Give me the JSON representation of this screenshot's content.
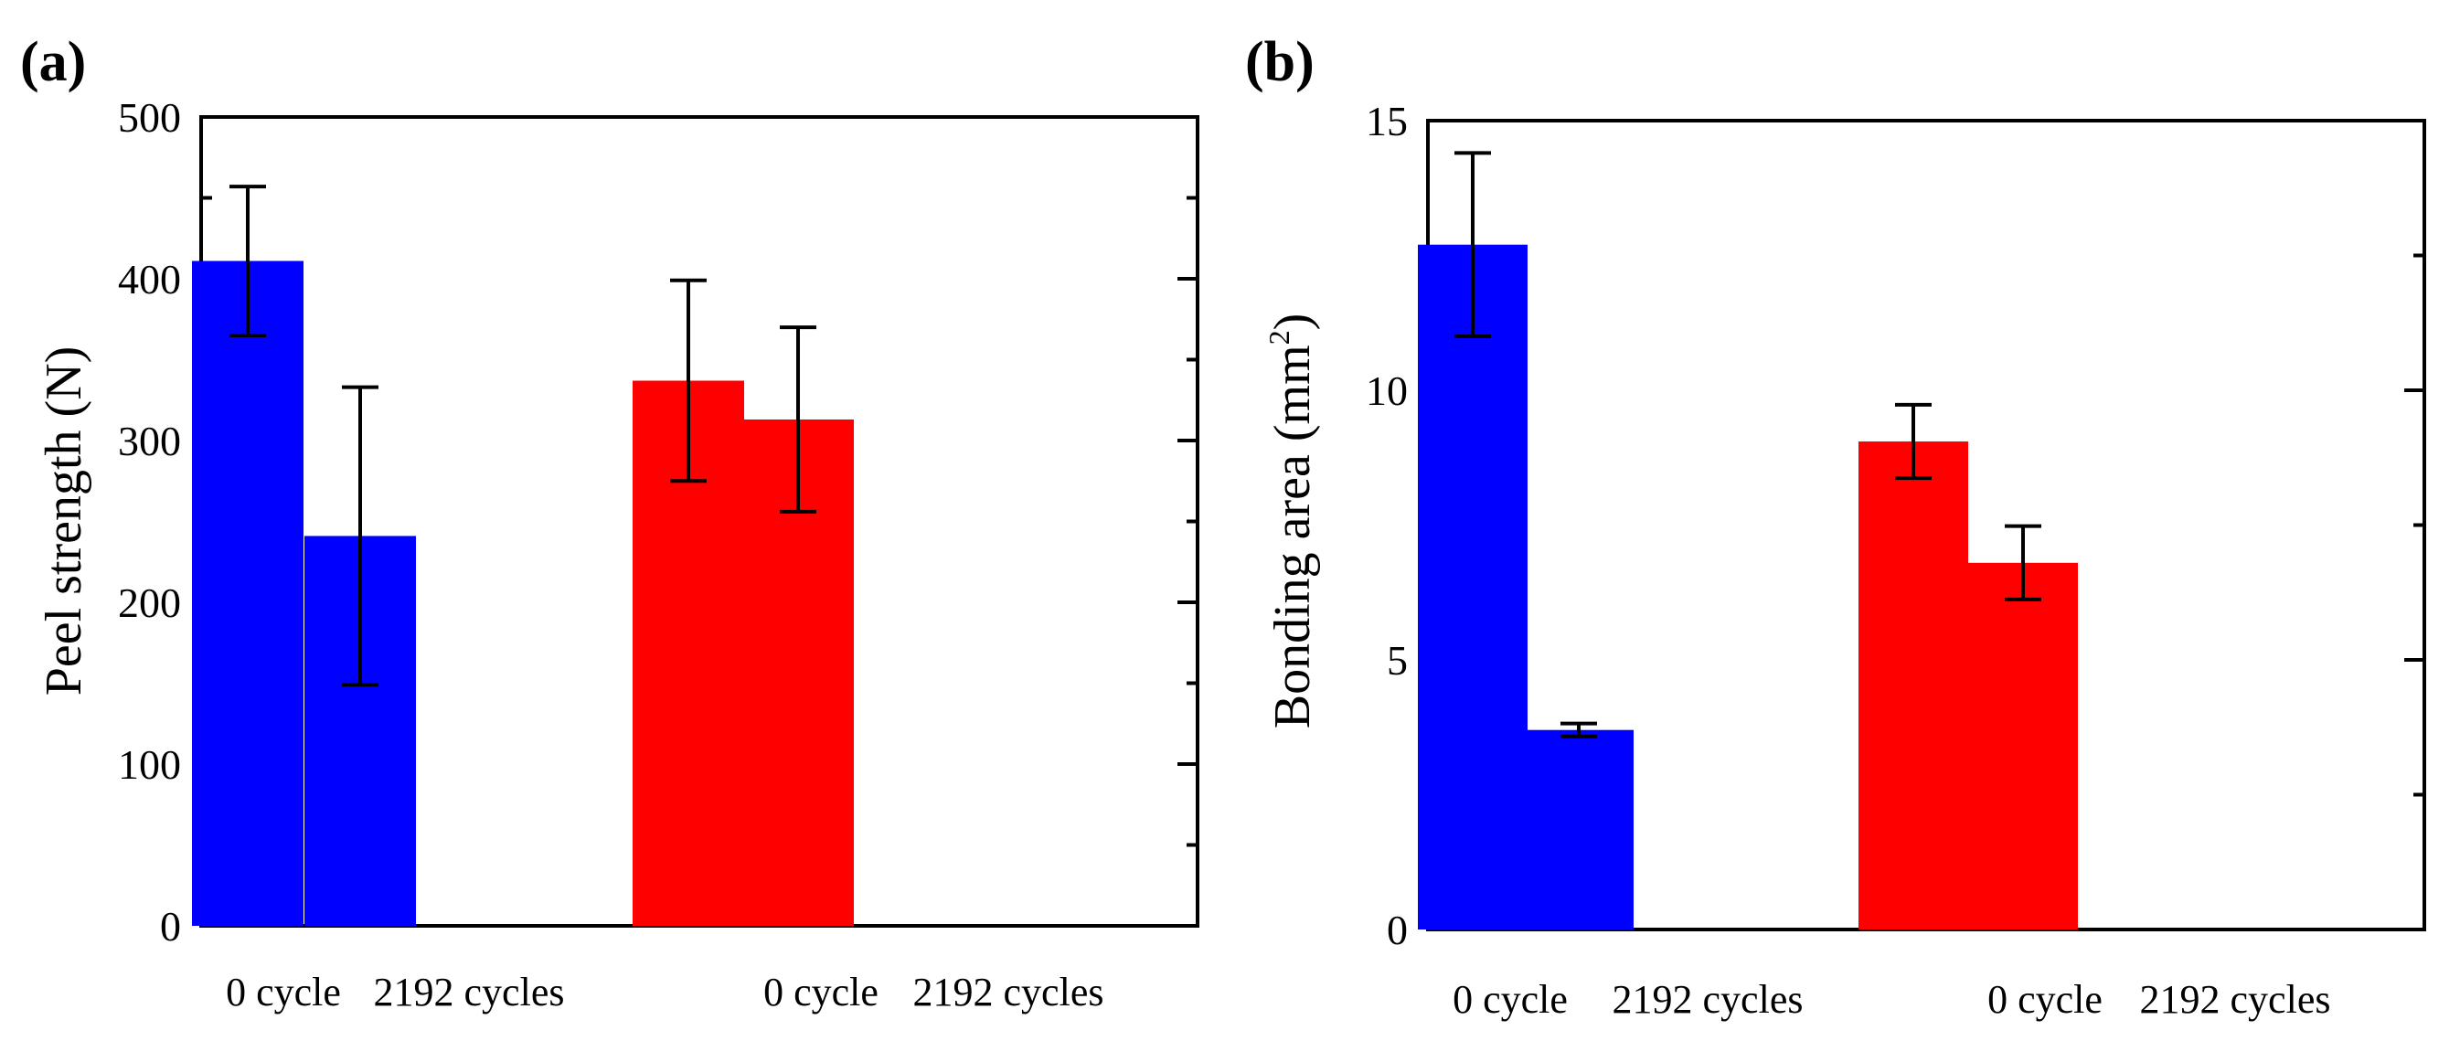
{
  "chart_data": [
    {
      "type": "bar",
      "panel_label": "(a)",
      "categories": [
        "0 cycle",
        "2192 cycles",
        "0 cycle",
        "2192 cycles"
      ],
      "values": [
        411,
        241,
        337,
        313
      ],
      "errors": [
        46,
        92,
        62,
        57
      ],
      "colors": [
        "#0000ff",
        "#0000ff",
        "#ff0000",
        "#ff0000"
      ],
      "ylabel": "Peel strength (N)",
      "xlabel": "",
      "ylim": [
        0,
        500
      ],
      "yticks": [
        0,
        100,
        200,
        300,
        400,
        500
      ],
      "ytick_labels": [
        "0",
        "100",
        "200",
        "300",
        "400",
        "500"
      ],
      "grid": false
    },
    {
      "type": "bar",
      "panel_label": "(b)",
      "categories": [
        "0 cycle",
        "2192 cycles",
        "0 cycle",
        "2192 cycles"
      ],
      "values": [
        12.7,
        3.7,
        9.05,
        6.8
      ],
      "errors": [
        1.7,
        0.12,
        0.68,
        0.68
      ],
      "colors": [
        "#0000ff",
        "#0000ff",
        "#ff0000",
        "#ff0000"
      ],
      "ylabel_main": "Bonding area (mm",
      "ylabel_sup": "2",
      "ylabel_end": ")",
      "xlabel": "",
      "ylim": [
        0,
        15
      ],
      "yticks": [
        0,
        5,
        10,
        15
      ],
      "ytick_labels": [
        "0",
        "5",
        "10",
        "15"
      ],
      "grid": false
    }
  ]
}
